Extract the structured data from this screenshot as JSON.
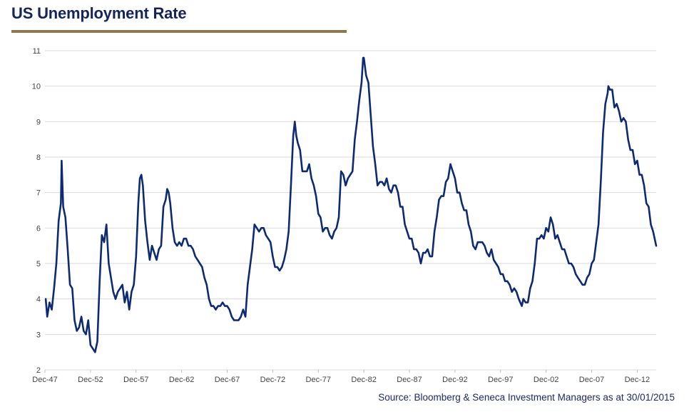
{
  "title": "US Unemployment Rate",
  "source": "Source: Bloomberg & Seneca Investment Managers as at 30/01/2015",
  "colors": {
    "line": "#0d2a73",
    "grid": "#d9d9d9",
    "title": "#14245c",
    "rule": "#8c7a4f"
  },
  "chart_data": {
    "type": "line",
    "title": "US Unemployment Rate",
    "xlabel": "",
    "ylabel": "",
    "x_range": [
      "Dec-47",
      "Jan-15"
    ],
    "ylim": [
      2,
      11
    ],
    "yticks": [
      2,
      3,
      4,
      5,
      6,
      7,
      8,
      9,
      10,
      11
    ],
    "xticks": [
      "Dec-47",
      "Dec-52",
      "Dec-57",
      "Dec-62",
      "Dec-67",
      "Dec-72",
      "Dec-77",
      "Dec-82",
      "Dec-87",
      "Dec-92",
      "Dec-97",
      "Dec-02",
      "Dec-07",
      "Dec-12"
    ],
    "grid": true,
    "legend": "none",
    "series": [
      {
        "name": "",
        "points": [
          [
            "Jan-48",
            4.0
          ],
          [
            "Mar-48",
            3.5
          ],
          [
            "Jun-48",
            3.9
          ],
          [
            "Sep-48",
            3.7
          ],
          [
            "Dec-48",
            4.3
          ],
          [
            "Mar-49",
            5.0
          ],
          [
            "Jun-49",
            6.2
          ],
          [
            "Sep-49",
            6.7
          ],
          [
            "Oct-49",
            7.9
          ],
          [
            "Dec-49",
            6.6
          ],
          [
            "Mar-50",
            6.3
          ],
          [
            "Jun-50",
            5.4
          ],
          [
            "Sep-50",
            4.4
          ],
          [
            "Dec-50",
            4.3
          ],
          [
            "Mar-51",
            3.4
          ],
          [
            "Jun-51",
            3.1
          ],
          [
            "Sep-51",
            3.2
          ],
          [
            "Dec-51",
            3.5
          ],
          [
            "Mar-52",
            3.1
          ],
          [
            "Jun-52",
            3.0
          ],
          [
            "Sep-52",
            3.4
          ],
          [
            "Dec-52",
            2.7
          ],
          [
            "Jun-53",
            2.5
          ],
          [
            "Sep-53",
            2.8
          ],
          [
            "Dec-53",
            4.5
          ],
          [
            "Mar-54",
            5.8
          ],
          [
            "Jun-54",
            5.6
          ],
          [
            "Sep-54",
            6.1
          ],
          [
            "Dec-54",
            5.0
          ],
          [
            "Mar-55",
            4.6
          ],
          [
            "Jun-55",
            4.2
          ],
          [
            "Sep-55",
            4.0
          ],
          [
            "Dec-55",
            4.2
          ],
          [
            "Mar-56",
            4.3
          ],
          [
            "Jun-56",
            4.4
          ],
          [
            "Sep-56",
            3.9
          ],
          [
            "Dec-56",
            4.2
          ],
          [
            "Mar-57",
            3.7
          ],
          [
            "Jun-57",
            4.2
          ],
          [
            "Sep-57",
            4.4
          ],
          [
            "Dec-57",
            5.2
          ],
          [
            "Mar-58",
            6.7
          ],
          [
            "May-58",
            7.4
          ],
          [
            "Jul-58",
            7.5
          ],
          [
            "Sep-58",
            7.2
          ],
          [
            "Dec-58",
            6.2
          ],
          [
            "Mar-59",
            5.6
          ],
          [
            "Jun-59",
            5.1
          ],
          [
            "Sep-59",
            5.5
          ],
          [
            "Dec-59",
            5.3
          ],
          [
            "Mar-60",
            5.1
          ],
          [
            "Jun-60",
            5.4
          ],
          [
            "Sep-60",
            5.5
          ],
          [
            "Dec-60",
            6.6
          ],
          [
            "Mar-61",
            6.8
          ],
          [
            "May-61",
            7.1
          ],
          [
            "Jul-61",
            7.0
          ],
          [
            "Sep-61",
            6.7
          ],
          [
            "Dec-61",
            6.0
          ],
          [
            "Mar-62",
            5.6
          ],
          [
            "Jun-62",
            5.5
          ],
          [
            "Sep-62",
            5.6
          ],
          [
            "Dec-62",
            5.5
          ],
          [
            "Mar-63",
            5.7
          ],
          [
            "Jun-63",
            5.7
          ],
          [
            "Sep-63",
            5.5
          ],
          [
            "Dec-63",
            5.5
          ],
          [
            "Mar-64",
            5.4
          ],
          [
            "Jun-64",
            5.2
          ],
          [
            "Sep-64",
            5.1
          ],
          [
            "Dec-64",
            5.0
          ],
          [
            "Mar-65",
            4.9
          ],
          [
            "Jun-65",
            4.6
          ],
          [
            "Sep-65",
            4.4
          ],
          [
            "Dec-65",
            4.0
          ],
          [
            "Mar-66",
            3.8
          ],
          [
            "Jun-66",
            3.8
          ],
          [
            "Sep-66",
            3.7
          ],
          [
            "Dec-66",
            3.8
          ],
          [
            "Mar-67",
            3.8
          ],
          [
            "Jun-67",
            3.9
          ],
          [
            "Sep-67",
            3.8
          ],
          [
            "Dec-67",
            3.8
          ],
          [
            "Mar-68",
            3.7
          ],
          [
            "Jun-68",
            3.5
          ],
          [
            "Sep-68",
            3.4
          ],
          [
            "Dec-68",
            3.4
          ],
          [
            "Mar-69",
            3.4
          ],
          [
            "Jun-69",
            3.5
          ],
          [
            "Sep-69",
            3.7
          ],
          [
            "Dec-69",
            3.5
          ],
          [
            "Mar-70",
            4.4
          ],
          [
            "Jun-70",
            4.9
          ],
          [
            "Sep-70",
            5.4
          ],
          [
            "Dec-70",
            6.1
          ],
          [
            "Mar-71",
            6.0
          ],
          [
            "Jun-71",
            5.9
          ],
          [
            "Sep-71",
            6.0
          ],
          [
            "Dec-71",
            6.0
          ],
          [
            "Mar-72",
            5.8
          ],
          [
            "Jun-72",
            5.7
          ],
          [
            "Sep-72",
            5.6
          ],
          [
            "Dec-72",
            5.2
          ],
          [
            "Mar-73",
            4.9
          ],
          [
            "Jun-73",
            4.9
          ],
          [
            "Sep-73",
            4.8
          ],
          [
            "Dec-73",
            4.9
          ],
          [
            "Mar-74",
            5.1
          ],
          [
            "Jun-74",
            5.4
          ],
          [
            "Sep-74",
            5.9
          ],
          [
            "Dec-74",
            7.2
          ],
          [
            "Mar-75",
            8.6
          ],
          [
            "May-75",
            9.0
          ],
          [
            "Jul-75",
            8.6
          ],
          [
            "Sep-75",
            8.4
          ],
          [
            "Dec-75",
            8.2
          ],
          [
            "Mar-76",
            7.6
          ],
          [
            "Jun-76",
            7.6
          ],
          [
            "Sep-76",
            7.6
          ],
          [
            "Dec-76",
            7.8
          ],
          [
            "Mar-77",
            7.4
          ],
          [
            "Jun-77",
            7.2
          ],
          [
            "Sep-77",
            6.9
          ],
          [
            "Dec-77",
            6.4
          ],
          [
            "Mar-78",
            6.3
          ],
          [
            "Jun-78",
            5.9
          ],
          [
            "Sep-78",
            6.0
          ],
          [
            "Dec-78",
            6.0
          ],
          [
            "Mar-79",
            5.8
          ],
          [
            "Jun-79",
            5.7
          ],
          [
            "Sep-79",
            5.9
          ],
          [
            "Dec-79",
            6.0
          ],
          [
            "Mar-80",
            6.3
          ],
          [
            "Jun-80",
            7.6
          ],
          [
            "Sep-80",
            7.5
          ],
          [
            "Dec-80",
            7.2
          ],
          [
            "Mar-81",
            7.4
          ],
          [
            "Jun-81",
            7.5
          ],
          [
            "Sep-81",
            7.6
          ],
          [
            "Dec-81",
            8.5
          ],
          [
            "Mar-82",
            9.0
          ],
          [
            "Jun-82",
            9.6
          ],
          [
            "Sep-82",
            10.1
          ],
          [
            "Nov-82",
            10.8
          ],
          [
            "Dec-82",
            10.8
          ],
          [
            "Mar-83",
            10.3
          ],
          [
            "Jun-83",
            10.1
          ],
          [
            "Sep-83",
            9.2
          ],
          [
            "Dec-83",
            8.3
          ],
          [
            "Mar-84",
            7.8
          ],
          [
            "Jun-84",
            7.2
          ],
          [
            "Sep-84",
            7.3
          ],
          [
            "Dec-84",
            7.3
          ],
          [
            "Mar-85",
            7.2
          ],
          [
            "Jun-85",
            7.4
          ],
          [
            "Sep-85",
            7.1
          ],
          [
            "Dec-85",
            7.0
          ],
          [
            "Mar-86",
            7.2
          ],
          [
            "Jun-86",
            7.2
          ],
          [
            "Sep-86",
            7.0
          ],
          [
            "Dec-86",
            6.6
          ],
          [
            "Mar-87",
            6.6
          ],
          [
            "Jun-87",
            6.1
          ],
          [
            "Sep-87",
            5.9
          ],
          [
            "Dec-87",
            5.7
          ],
          [
            "Mar-88",
            5.7
          ],
          [
            "Jun-88",
            5.4
          ],
          [
            "Sep-88",
            5.4
          ],
          [
            "Dec-88",
            5.3
          ],
          [
            "Mar-89",
            5.0
          ],
          [
            "Jun-89",
            5.3
          ],
          [
            "Sep-89",
            5.3
          ],
          [
            "Dec-89",
            5.4
          ],
          [
            "Mar-90",
            5.2
          ],
          [
            "Jun-90",
            5.2
          ],
          [
            "Sep-90",
            5.9
          ],
          [
            "Dec-90",
            6.3
          ],
          [
            "Mar-91",
            6.8
          ],
          [
            "Jun-91",
            6.9
          ],
          [
            "Sep-91",
            6.9
          ],
          [
            "Dec-91",
            7.3
          ],
          [
            "Mar-92",
            7.4
          ],
          [
            "Jun-92",
            7.8
          ],
          [
            "Sep-92",
            7.6
          ],
          [
            "Dec-92",
            7.4
          ],
          [
            "Mar-93",
            7.0
          ],
          [
            "Jun-93",
            7.0
          ],
          [
            "Sep-93",
            6.7
          ],
          [
            "Dec-93",
            6.5
          ],
          [
            "Mar-94",
            6.5
          ],
          [
            "Jun-94",
            6.1
          ],
          [
            "Sep-94",
            5.9
          ],
          [
            "Dec-94",
            5.5
          ],
          [
            "Mar-95",
            5.4
          ],
          [
            "Jun-95",
            5.6
          ],
          [
            "Sep-95",
            5.6
          ],
          [
            "Dec-95",
            5.6
          ],
          [
            "Mar-96",
            5.5
          ],
          [
            "Jun-96",
            5.3
          ],
          [
            "Sep-96",
            5.2
          ],
          [
            "Dec-96",
            5.4
          ],
          [
            "Mar-97",
            5.1
          ],
          [
            "Jun-97",
            5.0
          ],
          [
            "Sep-97",
            4.9
          ],
          [
            "Dec-97",
            4.7
          ],
          [
            "Mar-98",
            4.7
          ],
          [
            "Jun-98",
            4.5
          ],
          [
            "Sep-98",
            4.5
          ],
          [
            "Dec-98",
            4.4
          ],
          [
            "Mar-99",
            4.2
          ],
          [
            "Jun-99",
            4.3
          ],
          [
            "Sep-99",
            4.2
          ],
          [
            "Dec-99",
            4.0
          ],
          [
            "Apr-00",
            3.8
          ],
          [
            "Jun-00",
            4.0
          ],
          [
            "Sep-00",
            3.9
          ],
          [
            "Dec-00",
            3.9
          ],
          [
            "Mar-01",
            4.3
          ],
          [
            "Jun-01",
            4.5
          ],
          [
            "Sep-01",
            5.0
          ],
          [
            "Dec-01",
            5.7
          ],
          [
            "Mar-02",
            5.7
          ],
          [
            "Jun-02",
            5.8
          ],
          [
            "Sep-02",
            5.7
          ],
          [
            "Dec-02",
            6.0
          ],
          [
            "Mar-03",
            5.9
          ],
          [
            "Jun-03",
            6.3
          ],
          [
            "Sep-03",
            6.1
          ],
          [
            "Dec-03",
            5.7
          ],
          [
            "Mar-04",
            5.8
          ],
          [
            "Jun-04",
            5.6
          ],
          [
            "Sep-04",
            5.4
          ],
          [
            "Dec-04",
            5.4
          ],
          [
            "Mar-05",
            5.2
          ],
          [
            "Jun-05",
            5.0
          ],
          [
            "Sep-05",
            5.0
          ],
          [
            "Dec-05",
            4.9
          ],
          [
            "Mar-06",
            4.7
          ],
          [
            "Jun-06",
            4.6
          ],
          [
            "Sep-06",
            4.5
          ],
          [
            "Dec-06",
            4.4
          ],
          [
            "Mar-07",
            4.4
          ],
          [
            "Jun-07",
            4.6
          ],
          [
            "Sep-07",
            4.7
          ],
          [
            "Dec-07",
            5.0
          ],
          [
            "Mar-08",
            5.1
          ],
          [
            "Jun-08",
            5.6
          ],
          [
            "Sep-08",
            6.1
          ],
          [
            "Dec-08",
            7.3
          ],
          [
            "Mar-09",
            8.7
          ],
          [
            "Jun-09",
            9.5
          ],
          [
            "Sep-09",
            9.8
          ],
          [
            "Oct-09",
            10.0
          ],
          [
            "Dec-09",
            9.9
          ],
          [
            "Mar-10",
            9.9
          ],
          [
            "Jun-10",
            9.4
          ],
          [
            "Sep-10",
            9.5
          ],
          [
            "Dec-10",
            9.3
          ],
          [
            "Mar-11",
            9.0
          ],
          [
            "Jun-11",
            9.1
          ],
          [
            "Sep-11",
            9.0
          ],
          [
            "Dec-11",
            8.5
          ],
          [
            "Mar-12",
            8.2
          ],
          [
            "Jun-12",
            8.2
          ],
          [
            "Sep-12",
            7.8
          ],
          [
            "Dec-12",
            7.9
          ],
          [
            "Mar-13",
            7.5
          ],
          [
            "Jun-13",
            7.5
          ],
          [
            "Sep-13",
            7.2
          ],
          [
            "Dec-13",
            6.7
          ],
          [
            "Mar-14",
            6.6
          ],
          [
            "Jun-14",
            6.1
          ],
          [
            "Sep-14",
            5.9
          ],
          [
            "Dec-14",
            5.6
          ],
          [
            "Jan-15",
            5.5
          ]
        ]
      }
    ]
  }
}
